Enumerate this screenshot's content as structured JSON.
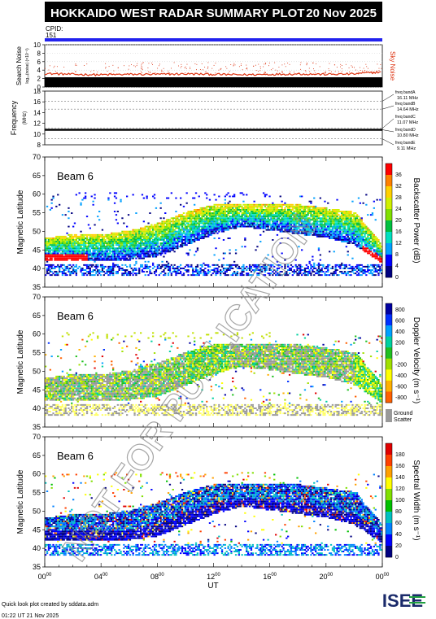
{
  "header": {
    "title": "HOKKAIDO WEST RADAR SUMMARY PLOT",
    "date": "20 Nov 2025",
    "cpid_label": "CPID:",
    "cpid_value": "151"
  },
  "colors": {
    "header_bg": "#000000",
    "cpid_bar": "#2222ee",
    "noise_sky": "#dd3311",
    "watermark": "#999999"
  },
  "watermark": "NOT FOR PUBLICATION",
  "x_axis": {
    "label": "UT",
    "ticks": [
      {
        "h": "00",
        "m": "00",
        "t": 0
      },
      {
        "h": "04",
        "m": "00",
        "t": 4
      },
      {
        "h": "08",
        "m": "00",
        "t": 8
      },
      {
        "h": "12",
        "m": "00",
        "t": 12
      },
      {
        "h": "16",
        "m": "00",
        "t": 16
      },
      {
        "h": "20",
        "m": "00",
        "t": 20
      },
      {
        "h": "00",
        "m": "00",
        "t": 24
      }
    ]
  },
  "chart_data": [
    {
      "type": "line",
      "id": "noise",
      "ylabel": "Search Noise",
      "ylabel_sub": "log₁₀(noise) (×10⁻³)",
      "legend": "Sky Noise",
      "ylim": [
        0,
        10
      ],
      "yticks": [
        0,
        2,
        4,
        6,
        8,
        10
      ],
      "series": [
        {
          "x": [
            0,
            2,
            4,
            6,
            8,
            10,
            12,
            14,
            16,
            18,
            20,
            22,
            24
          ],
          "y": [
            3.2,
            3.0,
            2.9,
            3.0,
            3.0,
            3.1,
            3.0,
            2.9,
            3.0,
            3.1,
            3.0,
            3.1,
            3.6
          ]
        }
      ]
    },
    {
      "type": "line",
      "id": "frequency",
      "ylabel": "Frequency",
      "yunit": "(MHz)",
      "ylim": [
        8,
        18
      ],
      "yticks": [
        8,
        10,
        12,
        14,
        16,
        18
      ],
      "series": [
        {
          "x": [
            0,
            24
          ],
          "y": [
            10.8,
            10.8
          ]
        }
      ],
      "bands": [
        {
          "name": "freq bandA",
          "value": "16.11 MHz",
          "f": 16.11
        },
        {
          "name": "freq bandB",
          "value": "14.64 MHz",
          "f": 14.64
        },
        {
          "name": "freq bandC",
          "value": "11.07 MHz",
          "f": 11.07
        },
        {
          "name": "freq bandD",
          "value": "10.80 MHz",
          "f": 10.8
        },
        {
          "name": "freq bandE",
          "value": "9.11 MHz",
          "f": 9.11
        }
      ]
    },
    {
      "type": "heatmap",
      "id": "power",
      "beam": "Beam  6",
      "ylabel": "Magnetic Latitude",
      "ylim": [
        35,
        70
      ],
      "yticks": [
        35,
        40,
        45,
        50,
        55,
        60,
        65,
        70
      ],
      "colorbar": {
        "label": "Backscatter Power (dB)",
        "ticks": [
          "0",
          "4",
          "8",
          "12",
          "16",
          "20",
          "24",
          "28",
          "32",
          "36"
        ]
      },
      "echo_boundary": {
        "t": [
          0,
          2,
          4,
          6,
          8,
          10,
          12,
          14,
          16,
          18,
          20,
          22,
          24
        ],
        "lower": [
          42,
          42,
          42,
          42,
          43,
          46,
          49,
          51,
          50,
          49,
          48,
          46,
          41
        ],
        "upper": [
          48,
          49,
          49,
          50,
          52,
          55,
          57,
          57,
          57,
          57,
          56,
          55,
          46
        ]
      }
    },
    {
      "type": "heatmap",
      "id": "velocity",
      "beam": "Beam  6",
      "ylabel": "Magnetic Latitude",
      "ylim": [
        35,
        70
      ],
      "yticks": [
        35,
        40,
        45,
        50,
        55,
        60,
        65,
        70
      ],
      "colorbar": {
        "label": "Doppler Velocity (m s⁻¹)",
        "ticks": [
          "800",
          "600",
          "400",
          "200",
          "0",
          "-200",
          "-400",
          "-600",
          "-800"
        ],
        "extra": "Ground Scatter"
      },
      "echo_boundary": {
        "t": [
          0,
          2,
          4,
          6,
          8,
          10,
          12,
          14,
          16,
          18,
          20,
          22,
          24
        ],
        "lower": [
          42,
          42,
          42,
          42,
          43,
          46,
          49,
          51,
          50,
          49,
          48,
          46,
          41
        ],
        "upper": [
          48,
          49,
          49,
          50,
          52,
          55,
          57,
          57,
          57,
          57,
          56,
          55,
          46
        ]
      }
    },
    {
      "type": "heatmap",
      "id": "width",
      "beam": "Beam  6",
      "ylabel": "Magnetic Latitude",
      "ylim": [
        35,
        70
      ],
      "yticks": [
        35,
        40,
        45,
        50,
        55,
        60,
        65,
        70
      ],
      "colorbar": {
        "label": "Spectral Width (m s⁻¹)",
        "ticks": [
          "0",
          "20",
          "40",
          "60",
          "80",
          "100",
          "120",
          "140",
          "160",
          "180"
        ]
      },
      "echo_boundary": {
        "t": [
          0,
          2,
          4,
          6,
          8,
          10,
          12,
          14,
          16,
          18,
          20,
          22,
          24
        ],
        "lower": [
          42,
          42,
          42,
          42,
          43,
          46,
          49,
          51,
          50,
          49,
          48,
          46,
          41
        ],
        "upper": [
          48,
          49,
          49,
          50,
          52,
          55,
          57,
          57,
          57,
          57,
          56,
          55,
          46
        ]
      }
    }
  ],
  "footer": {
    "credit": "Quick look plot created by sddata.adm",
    "timestamp": "01:22 UT 21 Nov 2025",
    "logo": "ISEE"
  }
}
